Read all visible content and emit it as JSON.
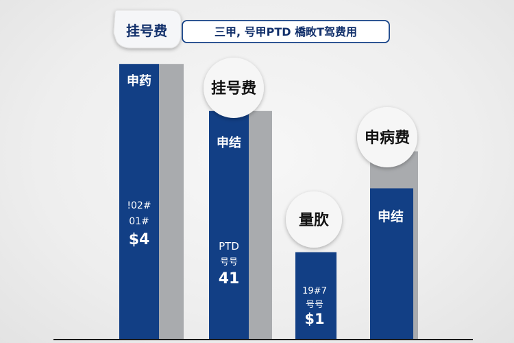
{
  "title": "",
  "legend": {
    "entries": [
      "挂号费",
      "三甲, 号甲PTD 橋畋T驾费用"
    ]
  },
  "colors": {
    "primary": "#123f85",
    "secondary": "#a9abae",
    "background": "#eeeeee"
  },
  "chart_data": {
    "type": "bar",
    "categories": [
      "",
      "",
      "",
      ""
    ],
    "series": [
      {
        "name": "挂号费",
        "values": [
          82,
          68,
          26,
          45
        ]
      },
      {
        "name": "三甲, 号甲PTD 橋畋T驾费用",
        "values": [
          82,
          68,
          26,
          56
        ]
      }
    ],
    "ylim": [
      0,
      100
    ],
    "grid": false,
    "legend_position": "top",
    "bar_labels": [
      {
        "label": "申药",
        "lines": [
          "!02#",
          "01#",
          "$4"
        ]
      },
      {
        "label": "申结",
        "lines": [
          "PTD",
          "号号",
          "41"
        ]
      },
      {
        "label": "",
        "lines": [
          "19#7",
          "号号",
          "$1"
        ]
      },
      {
        "label": "申结",
        "lines": []
      }
    ],
    "callouts": [
      "挂号费",
      "量肷",
      "申病费"
    ]
  }
}
